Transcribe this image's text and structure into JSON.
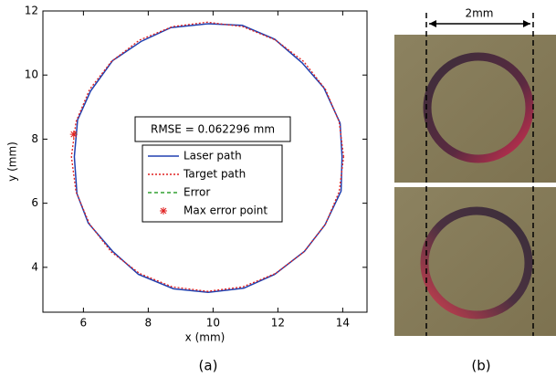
{
  "chart_data": {
    "type": "line",
    "xlabel": "x (mm)",
    "ylabel": "y (mm)",
    "xlim": [
      4.75,
      14.75
    ],
    "ylim": [
      2.6,
      12
    ],
    "xticks": [
      6,
      8,
      10,
      12,
      14
    ],
    "yticks": [
      4,
      6,
      8,
      10,
      12
    ],
    "annotation": "RMSE = 0.062296 mm",
    "series": [
      {
        "name": "Laser path",
        "color": "#2040b0",
        "linestyle": "solid",
        "x": [
          13.98,
          13.92,
          13.42,
          12.75,
          11.9,
          10.9,
          9.85,
          8.7,
          7.78,
          6.9,
          6.22,
          5.82,
          5.72,
          5.8,
          6.15,
          6.9,
          7.7,
          8.78,
          9.85,
          10.95,
          11.9,
          12.82,
          13.45,
          13.95,
          13.98
        ],
        "y": [
          7.45,
          8.5,
          9.6,
          10.38,
          11.12,
          11.55,
          11.6,
          11.48,
          11.05,
          10.45,
          9.5,
          8.6,
          7.45,
          6.3,
          5.38,
          4.5,
          3.78,
          3.33,
          3.22,
          3.35,
          3.78,
          4.5,
          5.32,
          6.38,
          7.45
        ]
      },
      {
        "name": "Target path",
        "color": "#e02020",
        "linestyle": "dotted",
        "x": [
          14.03,
          13.89,
          13.47,
          12.8,
          11.93,
          10.92,
          9.83,
          8.74,
          7.73,
          6.86,
          6.19,
          5.77,
          5.63,
          5.77,
          6.19,
          6.86,
          7.73,
          8.74,
          9.83,
          10.92,
          11.93,
          12.8,
          13.47,
          13.89,
          14.03
        ],
        "y": [
          7.45,
          8.54,
          9.55,
          10.42,
          11.09,
          11.51,
          11.65,
          11.51,
          11.09,
          10.42,
          9.55,
          8.54,
          7.45,
          6.36,
          5.35,
          4.48,
          3.81,
          3.39,
          3.25,
          3.39,
          3.81,
          4.48,
          5.35,
          6.36,
          7.45
        ]
      },
      {
        "name": "Error",
        "color": "#30a030",
        "linestyle": "dashed",
        "x": [
          5.7,
          5.77
        ],
        "y": [
          8.15,
          8.2
        ]
      },
      {
        "name": "Max error point",
        "color": "#e02020",
        "linestyle": "none",
        "marker": "*",
        "x": [
          5.7
        ],
        "y": [
          8.15
        ]
      }
    ]
  },
  "photo_panel": {
    "scale_label": "2mm"
  },
  "captions": {
    "a": "(a)",
    "b": "(b)"
  }
}
